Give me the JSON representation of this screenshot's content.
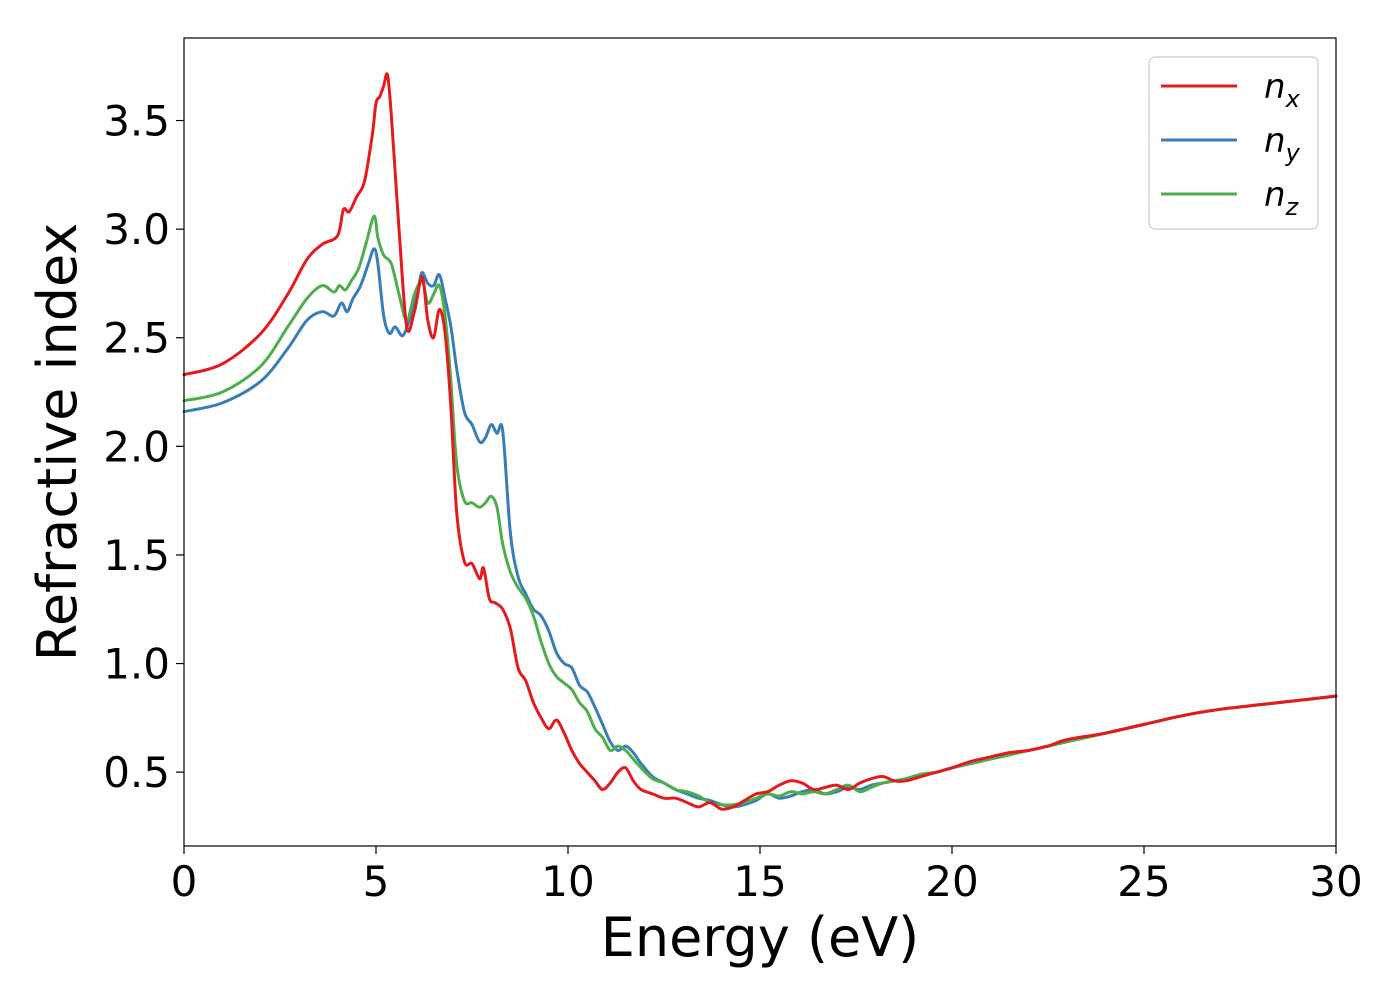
{
  "chart_data": {
    "type": "line",
    "xlabel": "Energy (eV)",
    "ylabel": "Refractive index",
    "xlim": [
      0,
      30
    ],
    "ylim": [
      0.16,
      3.88
    ],
    "xticks": [
      0,
      5,
      10,
      15,
      20,
      25,
      30
    ],
    "xtick_labels": [
      "0",
      "5",
      "10",
      "15",
      "20",
      "25",
      "30"
    ],
    "yticks": [
      0.5,
      1.0,
      1.5,
      2.0,
      2.5,
      3.0,
      3.5
    ],
    "ytick_labels": [
      "0.5",
      "1.0",
      "1.5",
      "2.0",
      "2.5",
      "3.0",
      "3.5"
    ],
    "grid": false,
    "legend_position": "top-right",
    "series": [
      {
        "name": "n",
        "subscript": "x",
        "color": "#e41a1c",
        "x": [
          0,
          1,
          2,
          2.7,
          3.2,
          3.6,
          4.0,
          4.15,
          4.3,
          4.5,
          4.7,
          4.9,
          5.0,
          5.1,
          5.2,
          5.3,
          5.4,
          5.6,
          5.8,
          6.0,
          6.2,
          6.35,
          6.5,
          6.65,
          6.8,
          6.95,
          7.1,
          7.3,
          7.5,
          7.7,
          7.8,
          7.95,
          8.1,
          8.3,
          8.5,
          8.7,
          8.9,
          9.1,
          9.3,
          9.5,
          9.7,
          9.9,
          10.1,
          10.3,
          10.5,
          10.7,
          10.9,
          11.1,
          11.3,
          11.5,
          11.7,
          11.9,
          12.2,
          12.5,
          12.8,
          13.1,
          13.4,
          13.7,
          14.0,
          14.3,
          14.6,
          14.9,
          15.2,
          15.5,
          15.8,
          16.1,
          16.4,
          16.7,
          17.0,
          17.3,
          17.6,
          17.9,
          18.2,
          18.5,
          18.8,
          19.2,
          19.6,
          20.0,
          20.5,
          21.0,
          21.5,
          22.0,
          22.5,
          23.0,
          24.0,
          25.0,
          26.0,
          27.0,
          28.0,
          29.0,
          30.0
        ],
        "values": [
          2.33,
          2.38,
          2.52,
          2.7,
          2.86,
          2.93,
          2.97,
          3.09,
          3.08,
          3.15,
          3.22,
          3.43,
          3.58,
          3.61,
          3.66,
          3.71,
          3.52,
          3.0,
          2.55,
          2.62,
          2.78,
          2.58,
          2.5,
          2.63,
          2.52,
          2.18,
          1.7,
          1.47,
          1.46,
          1.39,
          1.44,
          1.3,
          1.28,
          1.25,
          1.16,
          0.98,
          0.92,
          0.82,
          0.75,
          0.7,
          0.74,
          0.68,
          0.6,
          0.54,
          0.5,
          0.46,
          0.42,
          0.45,
          0.5,
          0.52,
          0.46,
          0.42,
          0.4,
          0.38,
          0.38,
          0.36,
          0.34,
          0.36,
          0.33,
          0.34,
          0.37,
          0.4,
          0.41,
          0.44,
          0.46,
          0.45,
          0.42,
          0.43,
          0.44,
          0.42,
          0.45,
          0.47,
          0.48,
          0.46,
          0.46,
          0.48,
          0.5,
          0.52,
          0.55,
          0.57,
          0.59,
          0.6,
          0.62,
          0.65,
          0.68,
          0.72,
          0.76,
          0.79,
          0.81,
          0.83,
          0.85
        ]
      },
      {
        "name": "n",
        "subscript": "y",
        "color": "#377eb8",
        "x": [
          0,
          1,
          2,
          2.7,
          3.2,
          3.6,
          3.9,
          4.1,
          4.25,
          4.4,
          4.6,
          4.8,
          4.95,
          5.05,
          5.2,
          5.35,
          5.5,
          5.7,
          5.9,
          6.1,
          6.2,
          6.35,
          6.5,
          6.65,
          6.8,
          6.95,
          7.1,
          7.3,
          7.5,
          7.7,
          7.85,
          8.0,
          8.15,
          8.3,
          8.5,
          8.7,
          8.9,
          9.1,
          9.3,
          9.5,
          9.7,
          9.9,
          10.1,
          10.3,
          10.5,
          10.7,
          10.9,
          11.1,
          11.3,
          11.5,
          11.7,
          11.9,
          12.2,
          12.5,
          12.8,
          13.1,
          13.4,
          13.7,
          14.0,
          14.3,
          14.6,
          14.9,
          15.2,
          15.5,
          15.8,
          16.1,
          16.4,
          16.7,
          17.0,
          17.3,
          17.6,
          17.9,
          18.2,
          18.5,
          18.8,
          19.2,
          19.6,
          20.0,
          20.5,
          21.0,
          21.5,
          22.0,
          22.5,
          23.0,
          24.0,
          25.0,
          26.0,
          27.0,
          28.0,
          29.0,
          30.0
        ],
        "values": [
          2.16,
          2.2,
          2.3,
          2.45,
          2.58,
          2.62,
          2.6,
          2.66,
          2.62,
          2.68,
          2.74,
          2.84,
          2.91,
          2.84,
          2.6,
          2.52,
          2.55,
          2.51,
          2.6,
          2.73,
          2.8,
          2.75,
          2.74,
          2.79,
          2.68,
          2.55,
          2.36,
          2.16,
          2.1,
          2.02,
          2.04,
          2.1,
          2.06,
          2.07,
          1.6,
          1.4,
          1.32,
          1.25,
          1.22,
          1.15,
          1.05,
          1.0,
          0.98,
          0.9,
          0.87,
          0.8,
          0.72,
          0.64,
          0.6,
          0.62,
          0.59,
          0.54,
          0.48,
          0.45,
          0.42,
          0.4,
          0.38,
          0.37,
          0.35,
          0.34,
          0.35,
          0.37,
          0.4,
          0.38,
          0.39,
          0.41,
          0.42,
          0.4,
          0.41,
          0.43,
          0.42,
          0.44,
          0.45,
          0.46,
          0.47,
          0.49,
          0.5,
          0.52,
          0.54,
          0.56,
          0.58,
          0.6,
          0.62,
          0.64,
          0.68,
          0.72,
          0.76,
          0.79,
          0.81,
          0.83,
          0.85
        ]
      },
      {
        "name": "n",
        "subscript": "z",
        "color": "#4daf4a",
        "x": [
          0,
          1,
          2,
          2.7,
          3.2,
          3.6,
          3.9,
          4.05,
          4.2,
          4.35,
          4.55,
          4.75,
          4.95,
          5.05,
          5.2,
          5.4,
          5.6,
          5.8,
          6.0,
          6.2,
          6.35,
          6.5,
          6.65,
          6.8,
          6.95,
          7.1,
          7.3,
          7.5,
          7.7,
          7.85,
          8.0,
          8.15,
          8.3,
          8.5,
          8.7,
          8.9,
          9.1,
          9.3,
          9.5,
          9.7,
          9.9,
          10.1,
          10.3,
          10.5,
          10.7,
          10.9,
          11.1,
          11.3,
          11.5,
          11.7,
          11.9,
          12.2,
          12.5,
          12.8,
          13.1,
          13.4,
          13.7,
          14.0,
          14.3,
          14.6,
          14.9,
          15.2,
          15.5,
          15.8,
          16.1,
          16.4,
          16.7,
          17.0,
          17.3,
          17.6,
          17.9,
          18.2,
          18.5,
          18.8,
          19.2,
          19.6,
          20.0,
          20.5,
          21.0,
          21.5,
          22.0,
          22.5,
          23.0,
          24.0,
          25.0,
          26.0,
          27.0,
          28.0,
          29.0,
          30.0
        ],
        "values": [
          2.21,
          2.25,
          2.37,
          2.55,
          2.68,
          2.74,
          2.71,
          2.74,
          2.72,
          2.76,
          2.82,
          2.94,
          3.06,
          2.96,
          2.88,
          2.84,
          2.7,
          2.58,
          2.7,
          2.76,
          2.66,
          2.7,
          2.74,
          2.6,
          2.3,
          1.92,
          1.75,
          1.74,
          1.72,
          1.74,
          1.77,
          1.72,
          1.55,
          1.42,
          1.35,
          1.3,
          1.22,
          1.1,
          1.0,
          0.94,
          0.91,
          0.88,
          0.82,
          0.78,
          0.7,
          0.66,
          0.6,
          0.62,
          0.6,
          0.56,
          0.52,
          0.47,
          0.45,
          0.42,
          0.41,
          0.39,
          0.36,
          0.35,
          0.35,
          0.36,
          0.38,
          0.4,
          0.39,
          0.41,
          0.4,
          0.41,
          0.4,
          0.42,
          0.44,
          0.41,
          0.43,
          0.45,
          0.46,
          0.47,
          0.49,
          0.5,
          0.52,
          0.54,
          0.56,
          0.58,
          0.6,
          0.62,
          0.64,
          0.68,
          0.72,
          0.76,
          0.79,
          0.81,
          0.83,
          0.85
        ]
      }
    ]
  }
}
